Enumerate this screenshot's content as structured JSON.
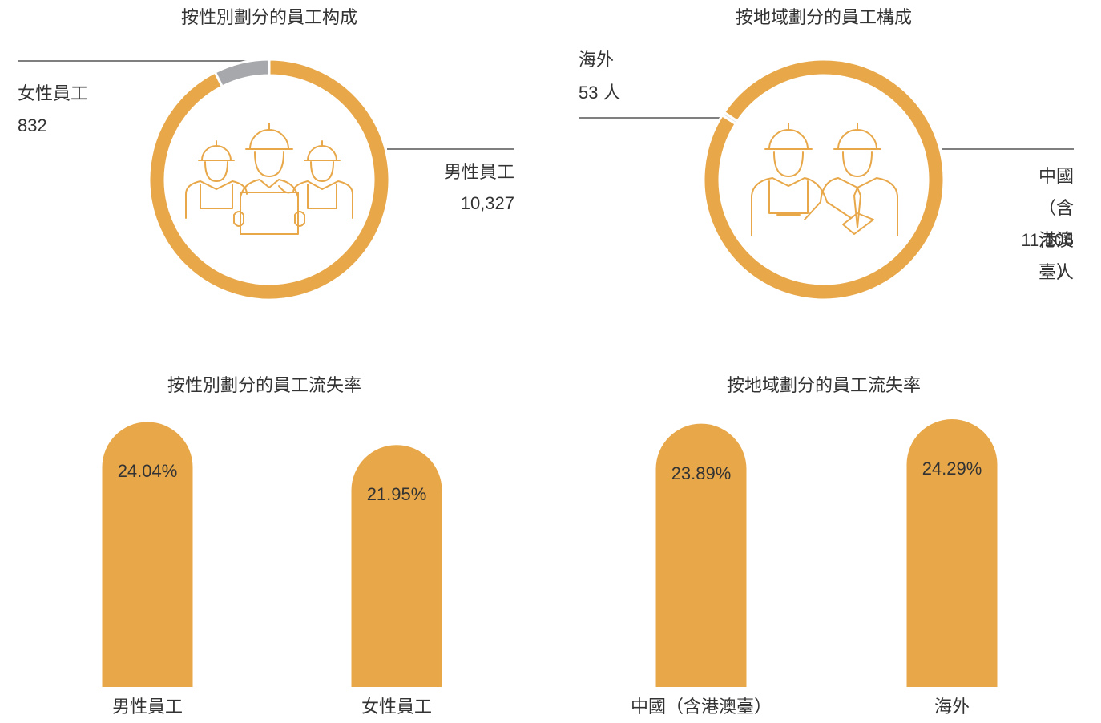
{
  "chart_data": [
    {
      "type": "pie",
      "title": "按性別劃分的員工构成",
      "categories": [
        "女性員工",
        "男性員工"
      ],
      "values": [
        832,
        10327
      ],
      "value_labels": [
        "832",
        "10,327"
      ],
      "colors": [
        "#a7a8ab",
        "#e8a84a"
      ]
    },
    {
      "type": "pie",
      "title": "按地域劃分的員工構成",
      "categories": [
        "海外",
        "中國\n（含港澳臺）"
      ],
      "values": [
        53,
        11106
      ],
      "value_labels": [
        "53 人",
        "11,106 人"
      ],
      "colors": [
        "#e6e6e6",
        "#e8a84a"
      ]
    },
    {
      "type": "bar",
      "title": "按性別劃分的員工流失率",
      "categories": [
        "男性員工",
        "女性員工"
      ],
      "values": [
        24.04,
        21.95
      ],
      "value_labels": [
        "24.04%",
        "21.95%"
      ],
      "color": "#e8a84a"
    },
    {
      "type": "bar",
      "title": "按地域劃分的員工流失率",
      "categories": [
        "中國（含港澳臺）",
        "海外"
      ],
      "values": [
        23.89,
        24.29
      ],
      "value_labels": [
        "23.89%",
        "24.29%"
      ],
      "color": "#e8a84a"
    }
  ]
}
